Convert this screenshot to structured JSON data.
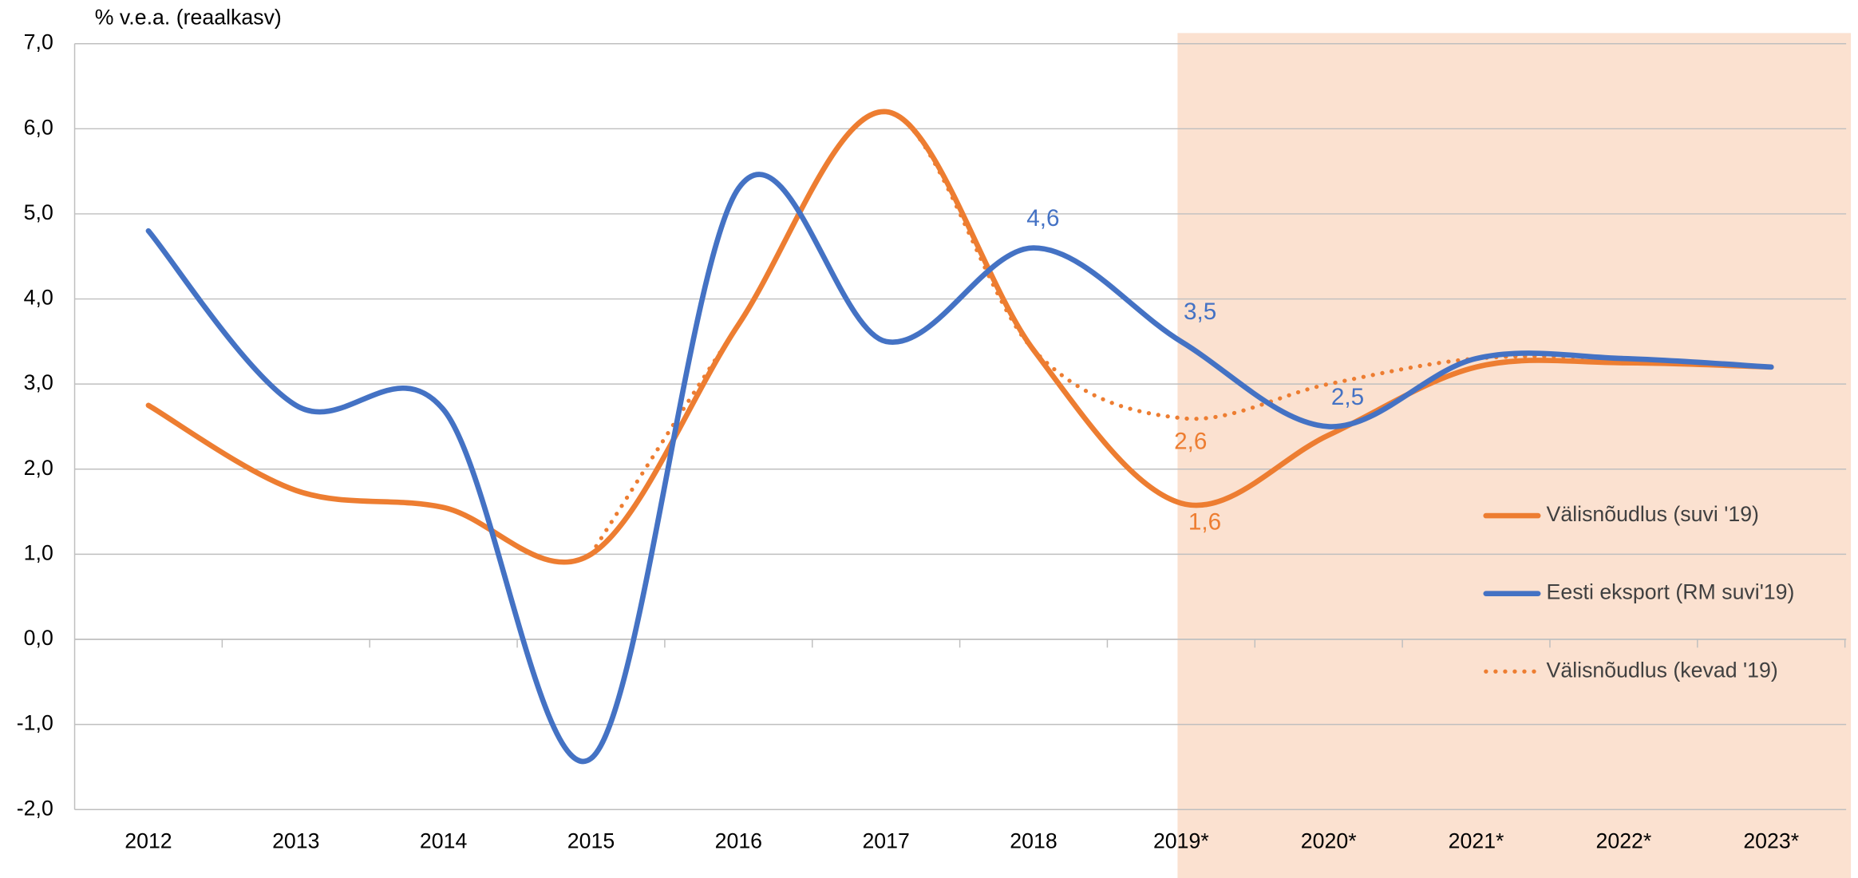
{
  "chart_data": {
    "type": "line",
    "y_axis_label": "% v.e.a. (reaalkasv)",
    "categories": [
      "2012",
      "2013",
      "2014",
      "2015",
      "2016",
      "2017",
      "2018",
      "2019*",
      "2020*",
      "2021*",
      "2022*",
      "2023*"
    ],
    "series": [
      {
        "name": "Välisnõudlus (suvi '19)",
        "color": "#ed7d31",
        "style": "solid",
        "values": [
          2.75,
          1.75,
          1.55,
          1.0,
          3.7,
          6.2,
          3.4,
          1.6,
          2.4,
          3.2,
          3.25,
          3.2
        ],
        "value_labels": [
          null,
          null,
          null,
          null,
          null,
          null,
          null,
          "1,6",
          null,
          null,
          null,
          null
        ]
      },
      {
        "name": "Eesti eksport (RM suvi'19)",
        "color": "#4472c4",
        "style": "solid",
        "values": [
          4.8,
          2.75,
          2.7,
          -1.4,
          5.3,
          3.5,
          4.6,
          3.5,
          2.5,
          3.3,
          3.3,
          3.2
        ],
        "value_labels": [
          null,
          null,
          null,
          null,
          null,
          null,
          "4,6",
          "3,5",
          "2,5",
          null,
          null,
          null
        ]
      },
      {
        "name": "Välisnõudlus (kevad '19)",
        "color": "#ed7d31",
        "style": "dotted",
        "values": [
          null,
          null,
          null,
          1.0,
          3.7,
          6.2,
          3.4,
          2.6,
          3.0,
          3.3,
          3.3,
          3.2
        ],
        "value_labels": [
          null,
          null,
          null,
          null,
          null,
          null,
          null,
          "2,6",
          null,
          null,
          null,
          null
        ]
      }
    ],
    "ylim": [
      -2,
      7
    ],
    "yticks": [
      {
        "value": -2,
        "label": "-2,0"
      },
      {
        "value": -1,
        "label": "-1,0"
      },
      {
        "value": 0,
        "label": "0,0"
      },
      {
        "value": 1,
        "label": "1,0"
      },
      {
        "value": 2,
        "label": "2,0"
      },
      {
        "value": 3,
        "label": "3,0"
      },
      {
        "value": 4,
        "label": "4,0"
      },
      {
        "value": 5,
        "label": "5,0"
      },
      {
        "value": 6,
        "label": "6,0"
      },
      {
        "value": 7,
        "label": "7,0"
      }
    ],
    "grid": true,
    "smooth": true,
    "legend": "right",
    "shaded_region": {
      "from": "2019*",
      "color": "#fbe1d0"
    }
  }
}
